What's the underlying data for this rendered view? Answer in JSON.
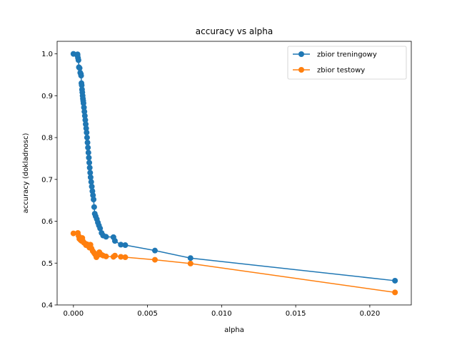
{
  "chart_data": {
    "type": "line",
    "title": "accuracy vs alpha",
    "xlabel": "alpha",
    "ylabel": "accuracy (dokladnosc)",
    "xlim": [
      -0.0011,
      0.0228
    ],
    "ylim": [
      0.4,
      1.03
    ],
    "xticks": [
      {
        "value": 0.0,
        "label": "0.000"
      },
      {
        "value": 0.005,
        "label": "0.005"
      },
      {
        "value": 0.01,
        "label": "0.010"
      },
      {
        "value": 0.015,
        "label": "0.015"
      },
      {
        "value": 0.02,
        "label": "0.020"
      }
    ],
    "yticks": [
      {
        "value": 0.4,
        "label": "0.4"
      },
      {
        "value": 0.5,
        "label": "0.5"
      },
      {
        "value": 0.6,
        "label": "0.6"
      },
      {
        "value": 0.7,
        "label": "0.7"
      },
      {
        "value": 0.8,
        "label": "0.8"
      },
      {
        "value": 0.9,
        "label": "0.9"
      },
      {
        "value": 1.0,
        "label": "1.0"
      }
    ],
    "grid": false,
    "legend_position": "top-right",
    "series": [
      {
        "name": "zbior treningowy",
        "color": "#1f77b4",
        "points": [
          [
            0.0,
            1.0
          ],
          [
            0.00028,
            0.999
          ],
          [
            0.00028,
            0.995
          ],
          [
            0.00031,
            0.99
          ],
          [
            0.00034,
            0.985
          ],
          [
            0.00037,
            0.968
          ],
          [
            0.00042,
            0.966
          ],
          [
            0.00046,
            0.955
          ],
          [
            0.0005,
            0.952
          ],
          [
            0.00052,
            0.948
          ],
          [
            0.00054,
            0.93
          ],
          [
            0.00056,
            0.925
          ],
          [
            0.00058,
            0.915
          ],
          [
            0.0006,
            0.908
          ],
          [
            0.00062,
            0.9
          ],
          [
            0.00064,
            0.893
          ],
          [
            0.00066,
            0.888
          ],
          [
            0.00068,
            0.882
          ],
          [
            0.00071,
            0.872
          ],
          [
            0.00074,
            0.862
          ],
          [
            0.00077,
            0.852
          ],
          [
            0.0008,
            0.842
          ],
          [
            0.00083,
            0.832
          ],
          [
            0.00086,
            0.822
          ],
          [
            0.00089,
            0.812
          ],
          [
            0.00092,
            0.8
          ],
          [
            0.00095,
            0.788
          ],
          [
            0.00098,
            0.776
          ],
          [
            0.00101,
            0.764
          ],
          [
            0.00104,
            0.752
          ],
          [
            0.00107,
            0.74
          ],
          [
            0.0011,
            0.728
          ],
          [
            0.00113,
            0.716
          ],
          [
            0.00116,
            0.705
          ],
          [
            0.0012,
            0.694
          ],
          [
            0.00124,
            0.683
          ],
          [
            0.00128,
            0.672
          ],
          [
            0.00132,
            0.662
          ],
          [
            0.00136,
            0.652
          ],
          [
            0.0014,
            0.634
          ],
          [
            0.00144,
            0.618
          ],
          [
            0.0015,
            0.612
          ],
          [
            0.00158,
            0.605
          ],
          [
            0.00165,
            0.597
          ],
          [
            0.00172,
            0.59
          ],
          [
            0.0018,
            0.583
          ],
          [
            0.0019,
            0.572
          ],
          [
            0.002,
            0.566
          ],
          [
            0.0022,
            0.563
          ],
          [
            0.0027,
            0.562
          ],
          [
            0.0028,
            0.553
          ],
          [
            0.0032,
            0.544
          ],
          [
            0.0035,
            0.543
          ],
          [
            0.0055,
            0.53
          ],
          [
            0.0079,
            0.512
          ],
          [
            0.0217,
            0.458
          ]
        ]
      },
      {
        "name": "zbior testowy",
        "color": "#ff7f0e",
        "points": [
          [
            0.0,
            0.571
          ],
          [
            0.0003,
            0.572
          ],
          [
            0.00035,
            0.565
          ],
          [
            0.0004,
            0.558
          ],
          [
            0.00048,
            0.555
          ],
          [
            0.00055,
            0.553
          ],
          [
            0.0006,
            0.56
          ],
          [
            0.00065,
            0.552
          ],
          [
            0.0007,
            0.549
          ],
          [
            0.00078,
            0.547
          ],
          [
            0.00085,
            0.543
          ],
          [
            0.00092,
            0.545
          ],
          [
            0.001,
            0.541
          ],
          [
            0.00108,
            0.537
          ],
          [
            0.00115,
            0.544
          ],
          [
            0.00122,
            0.535
          ],
          [
            0.0013,
            0.529
          ],
          [
            0.00138,
            0.525
          ],
          [
            0.00146,
            0.521
          ],
          [
            0.00155,
            0.514
          ],
          [
            0.00165,
            0.519
          ],
          [
            0.00175,
            0.526
          ],
          [
            0.0019,
            0.52
          ],
          [
            0.002,
            0.518
          ],
          [
            0.0022,
            0.516
          ],
          [
            0.0027,
            0.515
          ],
          [
            0.0028,
            0.518
          ],
          [
            0.0032,
            0.515
          ],
          [
            0.0035,
            0.514
          ],
          [
            0.0055,
            0.508
          ],
          [
            0.0079,
            0.499
          ],
          [
            0.0217,
            0.43
          ]
        ]
      }
    ]
  }
}
